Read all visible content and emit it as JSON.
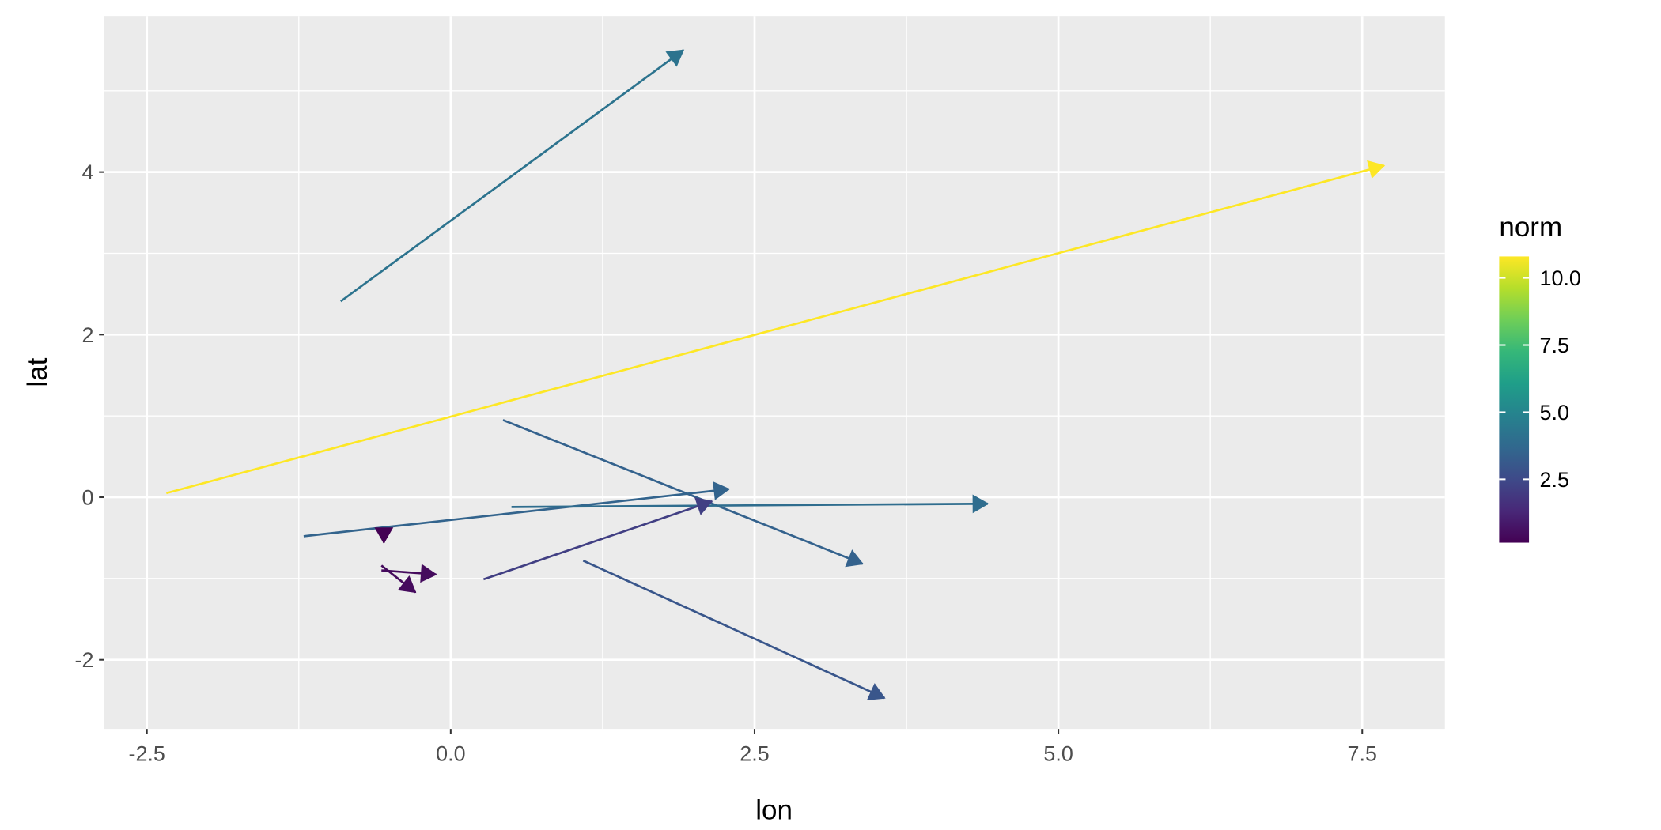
{
  "chart_data": {
    "type": "vector-field",
    "xlabel": "lon",
    "ylabel": "lat",
    "xlim": [
      -2.85,
      8.18
    ],
    "ylim": [
      -2.85,
      5.92
    ],
    "x_ticks": [
      -2.5,
      0.0,
      2.5,
      5.0,
      7.5
    ],
    "x_tick_labels": [
      "-2.5",
      "0.0",
      "2.5",
      "5.0",
      "7.5"
    ],
    "y_ticks": [
      -2,
      0,
      2,
      4
    ],
    "y_tick_labels": [
      "-2",
      "0",
      "2",
      "4"
    ],
    "grid": true,
    "legend": {
      "title": "norm",
      "placement": "right",
      "type": "colorbar",
      "palette": "viridis",
      "colors": [
        "#440154",
        "#482878",
        "#3e4a89",
        "#31688e",
        "#26828e",
        "#1f9e89",
        "#35b779",
        "#6ece58",
        "#b5de2b",
        "#fde725"
      ],
      "lim": [
        0.14,
        10.8
      ],
      "ticks": [
        2.5,
        5.0,
        7.5,
        10.0
      ],
      "tick_labels": [
        "2.5",
        "5.0",
        "7.5",
        "10.0"
      ]
    },
    "segments": [
      {
        "x": -0.905,
        "y": 2.41,
        "xend": 1.915,
        "yend": 5.5,
        "norm": 4.18
      },
      {
        "x": -2.34,
        "y": 0.05,
        "xend": 7.68,
        "yend": 4.08,
        "norm": 10.8
      },
      {
        "x": 0.43,
        "y": 0.95,
        "xend": 3.39,
        "yend": -0.82,
        "norm": 3.45
      },
      {
        "x": -1.21,
        "y": -0.48,
        "xend": 2.29,
        "yend": 0.1,
        "norm": 3.55
      },
      {
        "x": 0.5,
        "y": -0.12,
        "xend": 4.42,
        "yend": -0.08,
        "norm": 3.92
      },
      {
        "x": 0.27,
        "y": -1.01,
        "xend": 2.15,
        "yend": -0.05,
        "norm": 2.11
      },
      {
        "x": 1.09,
        "y": -0.78,
        "xend": 3.57,
        "yend": -2.47,
        "norm": 3.0
      },
      {
        "x": -0.55,
        "y": -0.42,
        "xend": -0.55,
        "yend": -0.56,
        "norm": 0.14
      },
      {
        "x": -0.57,
        "y": -0.9,
        "xend": -0.12,
        "yend": -0.95,
        "norm": 0.45
      },
      {
        "x": -0.57,
        "y": -0.84,
        "xend": -0.29,
        "yend": -1.17,
        "norm": 0.43
      }
    ]
  }
}
